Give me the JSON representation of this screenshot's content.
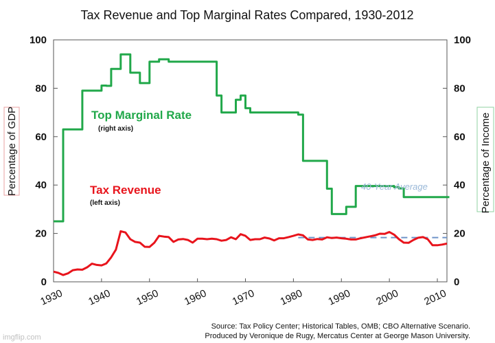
{
  "chart_data": {
    "type": "line",
    "title": "Tax Revenue and Top Marginal Rates Compared, 1930-2012",
    "left_axis": {
      "label": "Percentage of GDP",
      "range": [
        0,
        100
      ],
      "ticks": [
        "0",
        "20",
        "40",
        "60",
        "80",
        "100"
      ]
    },
    "right_axis": {
      "label": "Percentage of Income",
      "range": [
        0,
        100
      ],
      "ticks": [
        "0",
        "20",
        "40",
        "60",
        "80",
        "100"
      ]
    },
    "x_axis": {
      "range": [
        1930,
        2012
      ],
      "ticks": [
        "1930",
        "1940",
        "1950",
        "1960",
        "1970",
        "1980",
        "1990",
        "2000",
        "2010"
      ]
    },
    "series": [
      {
        "name": "Top Marginal Rate",
        "sublabel": "(right axis)",
        "axis": "right",
        "color": "#21a84a",
        "x": [
          1930,
          1931,
          1932,
          1933,
          1934,
          1935,
          1936,
          1937,
          1938,
          1939,
          1940,
          1941,
          1942,
          1943,
          1944,
          1945,
          1946,
          1947,
          1948,
          1949,
          1950,
          1951,
          1952,
          1953,
          1954,
          1955,
          1956,
          1957,
          1958,
          1959,
          1960,
          1961,
          1962,
          1963,
          1964,
          1965,
          1966,
          1967,
          1968,
          1969,
          1970,
          1971,
          1972,
          1973,
          1974,
          1975,
          1976,
          1977,
          1978,
          1979,
          1980,
          1981,
          1982,
          1983,
          1984,
          1985,
          1986,
          1987,
          1988,
          1989,
          1990,
          1991,
          1992,
          1993,
          1994,
          1995,
          1996,
          1997,
          1998,
          1999,
          2000,
          2001,
          2002,
          2003,
          2004,
          2005,
          2006,
          2007,
          2008,
          2009,
          2010,
          2011,
          2012
        ],
        "values": [
          25,
          25,
          63,
          63,
          63,
          63,
          79,
          79,
          79,
          79,
          81.1,
          81,
          88,
          88,
          94,
          94,
          86.45,
          86.45,
          82.13,
          82.13,
          91,
          91,
          92,
          92,
          91,
          91,
          91,
          91,
          91,
          91,
          91,
          91,
          91,
          91,
          77,
          70,
          70,
          70,
          75.25,
          77,
          71.75,
          70,
          70,
          70,
          70,
          70,
          70,
          70,
          70,
          70,
          70,
          69.13,
          50,
          50,
          50,
          50,
          50,
          38.5,
          28,
          28,
          28,
          31,
          31,
          39.6,
          39.6,
          39.6,
          39.6,
          39.6,
          39.6,
          39.6,
          39.6,
          39.1,
          38.6,
          35,
          35,
          35,
          35,
          35,
          35,
          35,
          35,
          35,
          35
        ]
      },
      {
        "name": "Tax Revenue",
        "sublabel": "(left axis)",
        "axis": "left",
        "color": "#e8141c",
        "x": [
          1930,
          1931,
          1932,
          1933,
          1934,
          1935,
          1936,
          1937,
          1938,
          1939,
          1940,
          1941,
          1942,
          1943,
          1944,
          1945,
          1946,
          1947,
          1948,
          1949,
          1950,
          1951,
          1952,
          1953,
          1954,
          1955,
          1956,
          1957,
          1958,
          1959,
          1960,
          1961,
          1962,
          1963,
          1964,
          1965,
          1966,
          1967,
          1968,
          1969,
          1970,
          1971,
          1972,
          1973,
          1974,
          1975,
          1976,
          1977,
          1978,
          1979,
          1980,
          1981,
          1982,
          1983,
          1984,
          1985,
          1986,
          1987,
          1988,
          1989,
          1990,
          1991,
          1992,
          1993,
          1994,
          1995,
          1996,
          1997,
          1998,
          1999,
          2000,
          2001,
          2002,
          2003,
          2004,
          2005,
          2006,
          2007,
          2008,
          2009,
          2010,
          2011,
          2012
        ],
        "values": [
          4.2,
          3.7,
          2.8,
          3.5,
          4.8,
          5.1,
          5,
          6,
          7.5,
          7,
          6.8,
          7.6,
          10.1,
          13.3,
          20.9,
          20.4,
          17.6,
          16.5,
          16.2,
          14.5,
          14.4,
          16.1,
          19,
          18.7,
          18.5,
          16.5,
          17.5,
          17.7,
          17.3,
          16.2,
          17.8,
          17.8,
          17.6,
          17.8,
          17.6,
          17,
          17.3,
          18.4,
          17.6,
          19.7,
          19,
          17.3,
          17.6,
          17.6,
          18.3,
          17.9,
          17.1,
          18,
          18,
          18.5,
          19,
          19.6,
          19.2,
          17.5,
          17.3,
          17.7,
          17.5,
          18.4,
          18.1,
          18.3,
          18,
          17.8,
          17.5,
          17.5,
          18,
          18.4,
          18.8,
          19.2,
          19.9,
          19.8,
          20.6,
          19.5,
          17.6,
          16.2,
          16.1,
          17.3,
          18.2,
          18.5,
          17.6,
          15.1,
          15.1,
          15.4,
          15.8
        ]
      },
      {
        "name": "40-Year Average",
        "axis": "left",
        "color": "#6d93c8",
        "style": "dashed",
        "x": [
          1981,
          2012
        ],
        "values": [
          18.3,
          18.3
        ]
      }
    ]
  },
  "source_line1": "Source: Tax Policy Center; Historical Tables, OMB; CBO Alternative Scenario.",
  "source_line2": "Produced by Veronique de Rugy, Mercatus Center at George Mason University.",
  "watermark": "imgflip.com"
}
